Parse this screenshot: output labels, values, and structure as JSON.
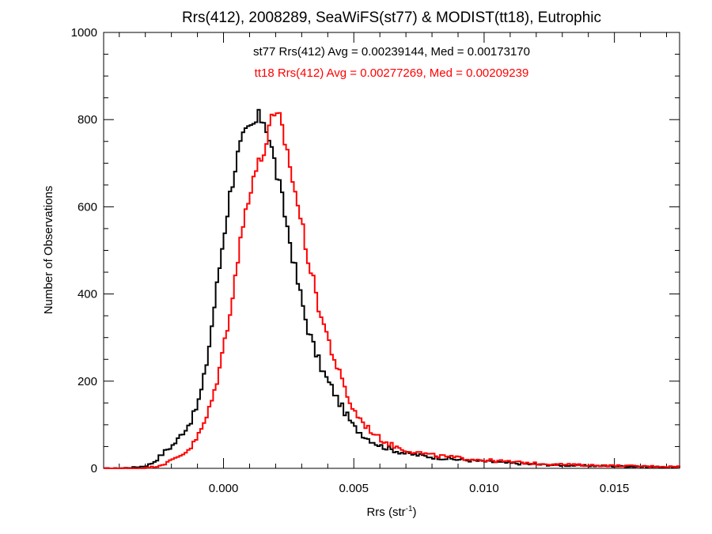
{
  "chart_data": {
    "type": "histogram",
    "title": "Rrs(412), 2008289, SeaWiFS(st77) & MODIST(tt18), Eutrophic",
    "xlabel": "Rrs (str",
    "xlabel_sup": "-1",
    "xlabel_close": ")",
    "ylabel": "Number of Observations",
    "xlim": [
      -0.0046,
      0.0175
    ],
    "ylim": [
      0,
      1000
    ],
    "x_ticks": [
      0.0,
      0.005,
      0.01,
      0.015
    ],
    "x_tick_labels": [
      "0.000",
      "0.005",
      "0.010",
      "0.015"
    ],
    "y_ticks": [
      0,
      200,
      400,
      600,
      800,
      1000
    ],
    "y_tick_labels": [
      "0",
      "200",
      "400",
      "600",
      "800",
      "1000"
    ],
    "grid": false,
    "bin_width": 0.0001,
    "annotations": [
      {
        "text": "st77 Rrs(412) Avg = 0.00239144, Med = 0.00173170",
        "color": "#000000"
      },
      {
        "text": "tt18 Rrs(412) Avg = 0.00277269, Med = 0.00209239",
        "color": "#ff0000"
      }
    ],
    "series": [
      {
        "color": "#000000",
        "points": [
          [
            -0.0046,
            0
          ],
          [
            -0.004,
            0
          ],
          [
            -0.0035,
            2
          ],
          [
            -0.003,
            5
          ],
          [
            -0.0028,
            10
          ],
          [
            -0.0026,
            18
          ],
          [
            -0.0024,
            30
          ],
          [
            -0.0022,
            42
          ],
          [
            -0.002,
            50
          ],
          [
            -0.0018,
            62
          ],
          [
            -0.0016,
            80
          ],
          [
            -0.0014,
            95
          ],
          [
            -0.0012,
            115
          ],
          [
            -0.001,
            145
          ],
          [
            -0.0008,
            190
          ],
          [
            -0.0006,
            260
          ],
          [
            -0.0004,
            350
          ],
          [
            -0.0002,
            440
          ],
          [
            0.0,
            530
          ],
          [
            0.0002,
            610
          ],
          [
            0.0004,
            680
          ],
          [
            0.0006,
            730
          ],
          [
            0.0008,
            760
          ],
          [
            0.001,
            775
          ],
          [
            0.0012,
            790
          ],
          [
            0.0014,
            805
          ],
          [
            0.0016,
            800
          ],
          [
            0.0018,
            745
          ],
          [
            0.002,
            690
          ],
          [
            0.0022,
            630
          ],
          [
            0.0024,
            570
          ],
          [
            0.0026,
            505
          ],
          [
            0.0028,
            440
          ],
          [
            0.003,
            385
          ],
          [
            0.0032,
            330
          ],
          [
            0.0034,
            290
          ],
          [
            0.0036,
            255
          ],
          [
            0.0038,
            225
          ],
          [
            0.004,
            200
          ],
          [
            0.0042,
            180
          ],
          [
            0.0044,
            155
          ],
          [
            0.0046,
            135
          ],
          [
            0.0048,
            115
          ],
          [
            0.005,
            95
          ],
          [
            0.0055,
            70
          ],
          [
            0.006,
            52
          ],
          [
            0.0065,
            42
          ],
          [
            0.007,
            34
          ],
          [
            0.008,
            26
          ],
          [
            0.009,
            20
          ],
          [
            0.01,
            16
          ],
          [
            0.011,
            12
          ],
          [
            0.012,
            9
          ],
          [
            0.013,
            7
          ],
          [
            0.014,
            6
          ],
          [
            0.015,
            5
          ],
          [
            0.016,
            4
          ],
          [
            0.017,
            3
          ],
          [
            0.0175,
            3
          ]
        ]
      },
      {
        "color": "#ff0000",
        "points": [
          [
            -0.0046,
            0
          ],
          [
            -0.0035,
            0
          ],
          [
            -0.003,
            1
          ],
          [
            -0.0026,
            4
          ],
          [
            -0.0024,
            8
          ],
          [
            -0.0022,
            12
          ],
          [
            -0.002,
            18
          ],
          [
            -0.0018,
            25
          ],
          [
            -0.0016,
            32
          ],
          [
            -0.0014,
            40
          ],
          [
            -0.0012,
            52
          ],
          [
            -0.001,
            72
          ],
          [
            -0.0008,
            95
          ],
          [
            -0.0006,
            125
          ],
          [
            -0.0004,
            165
          ],
          [
            -0.0002,
            215
          ],
          [
            0.0,
            275
          ],
          [
            0.0002,
            345
          ],
          [
            0.0004,
            420
          ],
          [
            0.0006,
            500
          ],
          [
            0.0008,
            575
          ],
          [
            0.001,
            640
          ],
          [
            0.0012,
            680
          ],
          [
            0.0014,
            700
          ],
          [
            0.0016,
            740
          ],
          [
            0.0018,
            790
          ],
          [
            0.002,
            800
          ],
          [
            0.0022,
            795
          ],
          [
            0.0024,
            740
          ],
          [
            0.0026,
            680
          ],
          [
            0.0028,
            620
          ],
          [
            0.003,
            560
          ],
          [
            0.0032,
            500
          ],
          [
            0.0034,
            440
          ],
          [
            0.0036,
            385
          ],
          [
            0.0038,
            340
          ],
          [
            0.004,
            300
          ],
          [
            0.0042,
            260
          ],
          [
            0.0044,
            225
          ],
          [
            0.0046,
            190
          ],
          [
            0.0048,
            160
          ],
          [
            0.005,
            132
          ],
          [
            0.0055,
            95
          ],
          [
            0.006,
            68
          ],
          [
            0.0065,
            52
          ],
          [
            0.007,
            42
          ],
          [
            0.008,
            30
          ],
          [
            0.009,
            24
          ],
          [
            0.01,
            19
          ],
          [
            0.011,
            15
          ],
          [
            0.012,
            11
          ],
          [
            0.013,
            9
          ],
          [
            0.014,
            7
          ],
          [
            0.015,
            6
          ],
          [
            0.016,
            5
          ],
          [
            0.017,
            4
          ],
          [
            0.0175,
            4
          ]
        ]
      }
    ]
  }
}
